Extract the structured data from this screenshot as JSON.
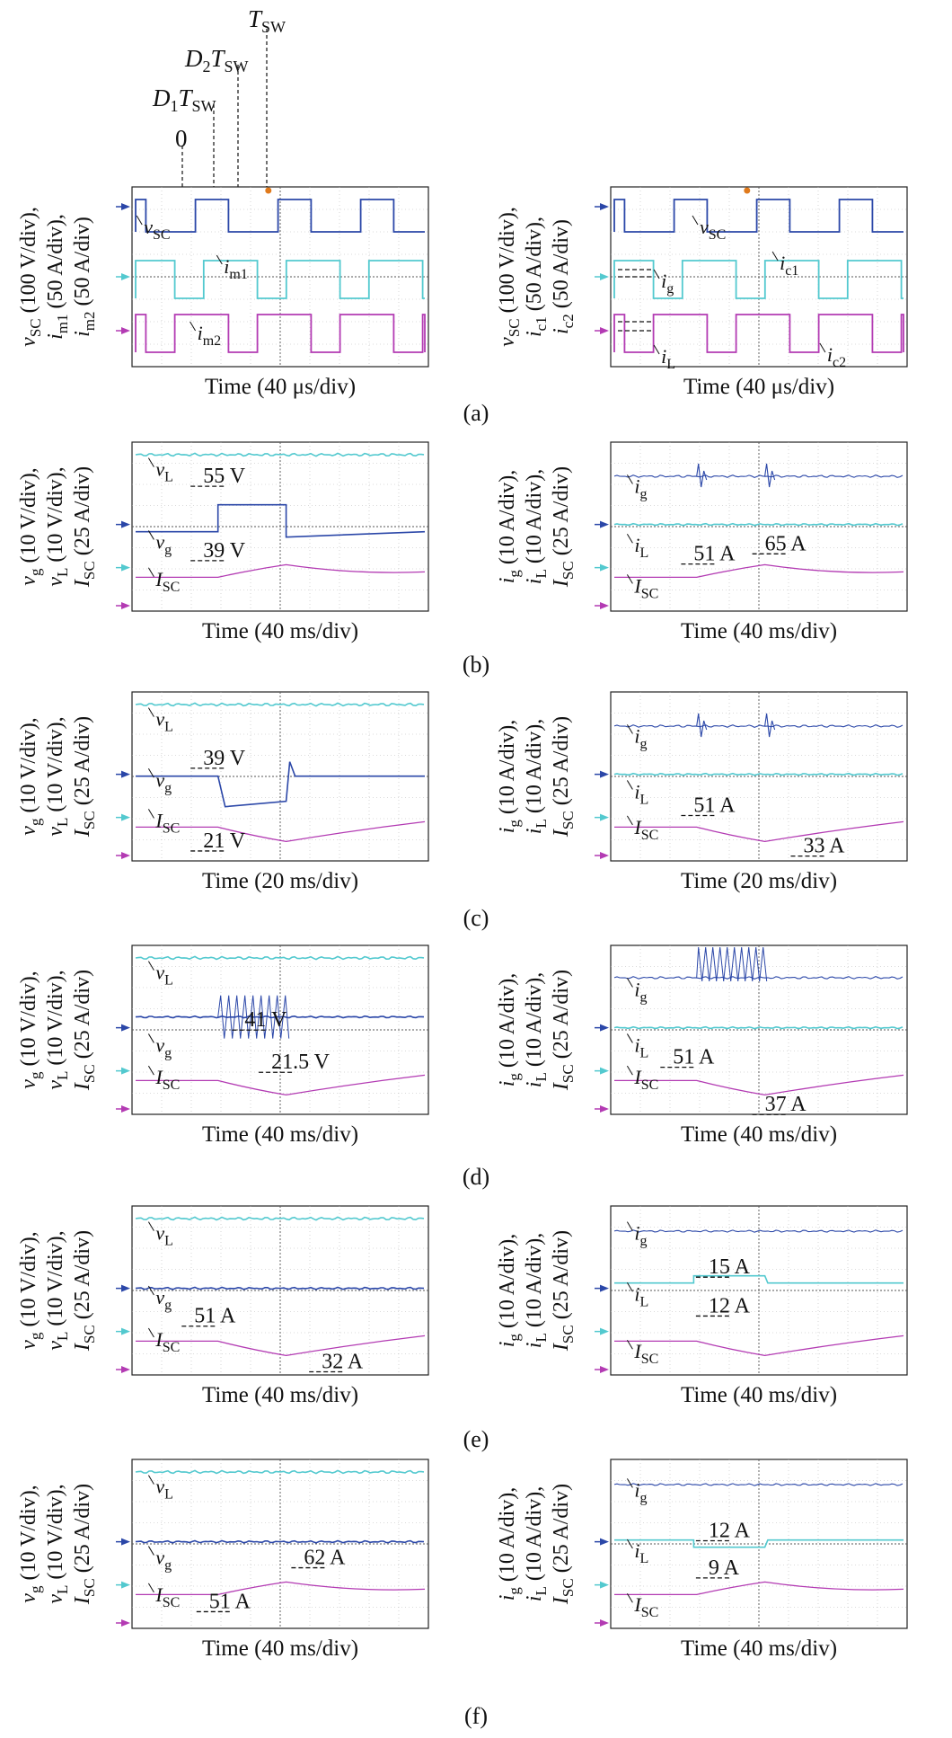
{
  "colors": {
    "trace_blue": "#2b47a8",
    "trace_cyan": "#53c9cf",
    "trace_magenta": "#b33bb3",
    "grid": "#b8b8b8",
    "marker_orange": "#e07a1c"
  },
  "top_timing": {
    "labels": [
      {
        "id": "tsw",
        "main": "T",
        "sub": "SW",
        "pre": ""
      },
      {
        "id": "d2",
        "main": "D",
        "sub2": "2",
        "main2": "T",
        "sub": "SW"
      },
      {
        "id": "d1",
        "main": "D",
        "sub2": "1",
        "main2": "T",
        "sub": "SW"
      },
      {
        "id": "zero",
        "main": "0"
      }
    ]
  },
  "panels": [
    {
      "id": "a-left",
      "row": "a",
      "side": "left",
      "kind": "switching",
      "yaxis": [
        {
          "sym": "v",
          "sub": "SC",
          "unit": "(100 V/div),"
        },
        {
          "sym": "i",
          "sub": "m1",
          "unit": "(50 A/div),"
        },
        {
          "sym": "i",
          "sub": "m2",
          "unit": "(50 A/div)"
        }
      ],
      "time": "Time (40 μs/div)",
      "labels": [
        {
          "sym": "v",
          "sub": "SC",
          "tx": 0.04,
          "ty": 0.26
        },
        {
          "sym": "i",
          "sub": "m1",
          "tx": 0.31,
          "ty": 0.48
        },
        {
          "sym": "i",
          "sub": "m2",
          "tx": 0.22,
          "ty": 0.85
        }
      ]
    },
    {
      "id": "a-right",
      "row": "a",
      "side": "right",
      "kind": "switching2",
      "yaxis": [
        {
          "sym": "v",
          "sub": "SC",
          "unit": "(100 V/div),"
        },
        {
          "sym": "i",
          "sub": "c1",
          "unit": "(50 A/div),"
        },
        {
          "sym": "i",
          "sub": "c2",
          "unit": "(50 A/div)"
        }
      ],
      "time": "Time (40 μs/div)",
      "labels": [
        {
          "sym": "v",
          "sub": "SC",
          "tx": 0.3,
          "ty": 0.26
        },
        {
          "sym": "i",
          "sub": "c1",
          "tx": 0.57,
          "ty": 0.46
        },
        {
          "sym": "i",
          "sub": "g",
          "tx": 0.17,
          "ty": 0.56
        },
        {
          "sym": "i",
          "sub": "L",
          "tx": 0.17,
          "ty": 0.98
        },
        {
          "sym": "i",
          "sub": "c2",
          "tx": 0.73,
          "ty": 0.97
        }
      ]
    },
    {
      "id": "b-left",
      "row": "b",
      "side": "left",
      "kind": "vstep-up",
      "yaxis": [
        {
          "sym": "v",
          "sub": "g",
          "unit": "(10 V/div),"
        },
        {
          "sym": "v",
          "sub": "L",
          "unit": "(10 V/div),"
        },
        {
          "sym": "I",
          "sub": "SC",
          "unit": "(25 A/div)"
        }
      ],
      "time": "Time (40 ms/div)",
      "labels": [
        {
          "sym": "v",
          "sub": "L",
          "tx": 0.08,
          "ty": 0.2
        },
        {
          "sym": "v",
          "sub": "g",
          "tx": 0.08,
          "ty": 0.63
        },
        {
          "sym": "I",
          "sub": "SC",
          "tx": 0.08,
          "ty": 0.85
        }
      ],
      "annotations": [
        {
          "text": "55 V",
          "tx": 0.24,
          "ty": 0.24
        },
        {
          "text": "39 V",
          "tx": 0.24,
          "ty": 0.68
        }
      ]
    },
    {
      "id": "b-right",
      "row": "b",
      "side": "right",
      "kind": "istep-up",
      "yaxis": [
        {
          "sym": "i",
          "sub": "g",
          "unit": "(10 A/div),"
        },
        {
          "sym": "i",
          "sub": "L",
          "unit": "(10 A/div),"
        },
        {
          "sym": "I",
          "sub": "SC",
          "unit": "(25 A/div)"
        }
      ],
      "time": "Time (40 ms/div)",
      "labels": [
        {
          "sym": "i",
          "sub": "g",
          "tx": 0.08,
          "ty": 0.3
        },
        {
          "sym": "i",
          "sub": "L",
          "tx": 0.08,
          "ty": 0.65
        },
        {
          "sym": "I",
          "sub": "SC",
          "tx": 0.08,
          "ty": 0.89
        }
      ],
      "annotations": [
        {
          "text": "51 A",
          "tx": 0.28,
          "ty": 0.7
        },
        {
          "text": "65 A",
          "tx": 0.52,
          "ty": 0.64
        }
      ]
    },
    {
      "id": "c-left",
      "row": "c",
      "side": "left",
      "kind": "vstep-down",
      "yaxis": [
        {
          "sym": "v",
          "sub": "g",
          "unit": "(10 V/div),"
        },
        {
          "sym": "v",
          "sub": "L",
          "unit": "(10 V/div),"
        },
        {
          "sym": "I",
          "sub": "SC",
          "unit": "(25 A/div)"
        }
      ],
      "time": "Time (20 ms/div)",
      "labels": [
        {
          "sym": "v",
          "sub": "L",
          "tx": 0.08,
          "ty": 0.2
        },
        {
          "sym": "v",
          "sub": "g",
          "tx": 0.08,
          "ty": 0.56
        },
        {
          "sym": "I",
          "sub": "SC",
          "tx": 0.08,
          "ty": 0.8
        }
      ],
      "annotations": [
        {
          "text": "39 V",
          "tx": 0.24,
          "ty": 0.43
        },
        {
          "text": "21 V",
          "tx": 0.24,
          "ty": 0.92
        }
      ]
    },
    {
      "id": "c-right",
      "row": "c",
      "side": "right",
      "kind": "istep-down",
      "yaxis": [
        {
          "sym": "i",
          "sub": "g",
          "unit": "(10 A/div),"
        },
        {
          "sym": "i",
          "sub": "L",
          "unit": "(10 A/div),"
        },
        {
          "sym": "I",
          "sub": "SC",
          "unit": "(25 A/div)"
        }
      ],
      "time": "Time (20 ms/div)",
      "labels": [
        {
          "sym": "i",
          "sub": "g",
          "tx": 0.08,
          "ty": 0.3
        },
        {
          "sym": "i",
          "sub": "L",
          "tx": 0.08,
          "ty": 0.63
        },
        {
          "sym": "I",
          "sub": "SC",
          "tx": 0.08,
          "ty": 0.84
        }
      ],
      "annotations": [
        {
          "text": "51 A",
          "tx": 0.28,
          "ty": 0.71
        },
        {
          "text": "33 A",
          "tx": 0.65,
          "ty": 0.95
        }
      ]
    },
    {
      "id": "d-left",
      "row": "d",
      "side": "left",
      "kind": "vosc",
      "yaxis": [
        {
          "sym": "v",
          "sub": "g",
          "unit": "(10 V/div),"
        },
        {
          "sym": "v",
          "sub": "L",
          "unit": "(10 V/div),"
        },
        {
          "sym": "I",
          "sub": "SC",
          "unit": "(25 A/div)"
        }
      ],
      "time": "Time (40 ms/div)",
      "labels": [
        {
          "sym": "v",
          "sub": "L",
          "tx": 0.08,
          "ty": 0.2
        },
        {
          "sym": "v",
          "sub": "g",
          "tx": 0.08,
          "ty": 0.63
        },
        {
          "sym": "I",
          "sub": "SC",
          "tx": 0.08,
          "ty": 0.82
        }
      ],
      "annotations": [
        {
          "text": "41 V",
          "tx": 0.38,
          "ty": 0.48
        },
        {
          "text": "21.5 V",
          "tx": 0.47,
          "ty": 0.73
        }
      ]
    },
    {
      "id": "d-right",
      "row": "d",
      "side": "right",
      "kind": "iosc",
      "yaxis": [
        {
          "sym": "i",
          "sub": "g",
          "unit": "(10 A/div),"
        },
        {
          "sym": "i",
          "sub": "L",
          "unit": "(10 A/div),"
        },
        {
          "sym": "I",
          "sub": "SC",
          "unit": "(25 A/div)"
        }
      ],
      "time": "Time (40 ms/div)",
      "labels": [
        {
          "sym": "i",
          "sub": "g",
          "tx": 0.08,
          "ty": 0.3
        },
        {
          "sym": "i",
          "sub": "L",
          "tx": 0.08,
          "ty": 0.63
        },
        {
          "sym": "I",
          "sub": "SC",
          "tx": 0.08,
          "ty": 0.82
        }
      ],
      "annotations": [
        {
          "text": "51 A",
          "tx": 0.21,
          "ty": 0.7
        },
        {
          "text": "37 A",
          "tx": 0.52,
          "ty": 0.98
        }
      ]
    },
    {
      "id": "e-left",
      "row": "e",
      "side": "left",
      "kind": "e-left",
      "yaxis": [
        {
          "sym": "v",
          "sub": "g",
          "unit": "(10 V/div),"
        },
        {
          "sym": "v",
          "sub": "L",
          "unit": "(10 V/div),"
        },
        {
          "sym": "I",
          "sub": "SC",
          "unit": "(25 A/div)"
        }
      ],
      "time": "Time (40 ms/div)",
      "labels": [
        {
          "sym": "v",
          "sub": "L",
          "tx": 0.08,
          "ty": 0.2
        },
        {
          "sym": "v",
          "sub": "g",
          "tx": 0.08,
          "ty": 0.58
        },
        {
          "sym": "I",
          "sub": "SC",
          "tx": 0.08,
          "ty": 0.83
        }
      ],
      "annotations": [
        {
          "text": "51 A",
          "tx": 0.21,
          "ty": 0.69
        },
        {
          "text": "32 A",
          "tx": 0.64,
          "ty": 0.96
        }
      ]
    },
    {
      "id": "e-right",
      "row": "e",
      "side": "right",
      "kind": "e-right",
      "yaxis": [
        {
          "sym": "i",
          "sub": "g",
          "unit": "(10 A/div),"
        },
        {
          "sym": "i",
          "sub": "L",
          "unit": "(10 A/div),"
        },
        {
          "sym": "I",
          "sub": "SC",
          "unit": "(25 A/div)"
        }
      ],
      "time": "Time (40 ms/div)",
      "labels": [
        {
          "sym": "i",
          "sub": "g",
          "tx": 0.08,
          "ty": 0.2
        },
        {
          "sym": "i",
          "sub": "L",
          "tx": 0.08,
          "ty": 0.56
        },
        {
          "sym": "I",
          "sub": "SC",
          "tx": 0.08,
          "ty": 0.9
        }
      ],
      "annotations": [
        {
          "text": "15 A",
          "tx": 0.33,
          "ty": 0.4
        },
        {
          "text": "12 A",
          "tx": 0.33,
          "ty": 0.63
        }
      ]
    },
    {
      "id": "f-left",
      "row": "f",
      "side": "left",
      "kind": "f-left",
      "yaxis": [
        {
          "sym": "v",
          "sub": "g",
          "unit": "(10 V/div),"
        },
        {
          "sym": "v",
          "sub": "L",
          "unit": "(10 V/div),"
        },
        {
          "sym": "I",
          "sub": "SC",
          "unit": "(25 A/div)"
        }
      ],
      "time": "Time (40 ms/div)",
      "labels": [
        {
          "sym": "v",
          "sub": "L",
          "tx": 0.08,
          "ty": 0.2
        },
        {
          "sym": "v",
          "sub": "g",
          "tx": 0.08,
          "ty": 0.62
        },
        {
          "sym": "I",
          "sub": "SC",
          "tx": 0.08,
          "ty": 0.84
        }
      ],
      "annotations": [
        {
          "text": "62 A",
          "tx": 0.58,
          "ty": 0.62
        },
        {
          "text": "51 A",
          "tx": 0.26,
          "ty": 0.88
        }
      ]
    },
    {
      "id": "f-right",
      "row": "f",
      "side": "right",
      "kind": "f-right",
      "yaxis": [
        {
          "sym": "i",
          "sub": "g",
          "unit": "(10 A/div),"
        },
        {
          "sym": "i",
          "sub": "L",
          "unit": "(10 A/div),"
        },
        {
          "sym": "I",
          "sub": "SC",
          "unit": "(25 A/div)"
        }
      ],
      "time": "Time (40 ms/div)",
      "labels": [
        {
          "sym": "i",
          "sub": "g",
          "tx": 0.08,
          "ty": 0.22
        },
        {
          "sym": "i",
          "sub": "L",
          "tx": 0.08,
          "ty": 0.58
        },
        {
          "sym": "I",
          "sub": "SC",
          "tx": 0.08,
          "ty": 0.9
        }
      ],
      "annotations": [
        {
          "text": "12 A",
          "tx": 0.33,
          "ty": 0.46
        },
        {
          "text": "9 A",
          "tx": 0.33,
          "ty": 0.68
        }
      ]
    }
  ],
  "captions": [
    "(a)",
    "(b)",
    "(c)",
    "(d)",
    "(e)",
    "(f)"
  ]
}
